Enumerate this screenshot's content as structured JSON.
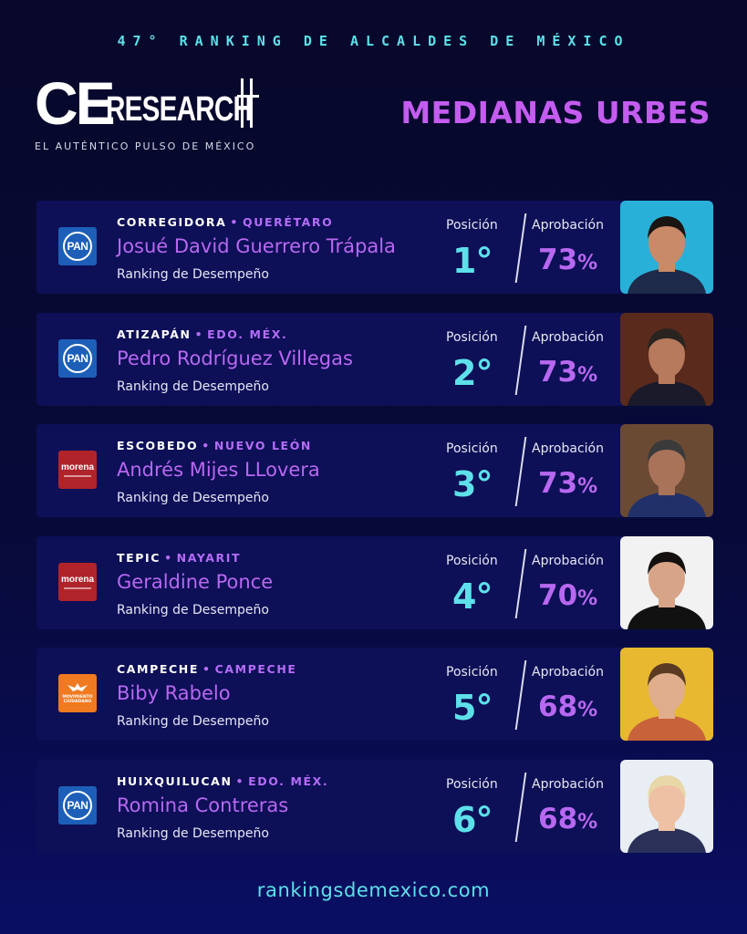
{
  "header": {
    "top_title": "47° RANKING DE ALCALDES DE MÉXICO",
    "logo_ce": "CE",
    "logo_research": "RESEARCH",
    "logo_tagline": "EL AUTÉNTICO PULSO DE MÉXICO",
    "section_title": "MEDIANAS URBES"
  },
  "labels": {
    "position": "Posición",
    "approval": "Aprobación",
    "subtitle": "Ranking de Desempeño"
  },
  "colors": {
    "accent_cyan": "#5ee0ea",
    "accent_purple": "#b868f0",
    "card_bg": "#0d0f57"
  },
  "mayors": [
    {
      "city": "CORREGIDORA",
      "state": "QUERÉTARO",
      "name": "Josué David Guerrero Trápala",
      "subtitle": "Ranking de Desempeño",
      "position": "1°",
      "approval": "73",
      "party_icon": "pan-logo"
    },
    {
      "city": "ATIZAPÁN",
      "state": "EDO. MÉX.",
      "name": "Pedro Rodríguez Villegas",
      "subtitle": "Ranking de Desempeño",
      "position": "2°",
      "approval": "73",
      "party_icon": "pan-logo"
    },
    {
      "city": "ESCOBEDO",
      "state": "NUEVO LEÓN",
      "name": "Andrés Mijes LLovera",
      "subtitle": "Ranking de Desempeño",
      "position": "3°",
      "approval": "73",
      "party_icon": "morena-logo"
    },
    {
      "city": "TEPIC",
      "state": "NAYARIT",
      "name": "Geraldine Ponce",
      "subtitle": "Ranking de Desempeño",
      "position": "4°",
      "approval": "70",
      "party_icon": "morena-logo"
    },
    {
      "city": "CAMPECHE",
      "state": "CAMPECHE",
      "name": "Biby Rabelo",
      "subtitle": "Ranking de Desempeño",
      "position": "5°",
      "approval": "68",
      "party_icon": "movimiento-ciudadano-logo"
    },
    {
      "city": "HUIXQUILUCAN",
      "state": "EDO. MÉX.",
      "name": "Romina Contreras",
      "subtitle": "Ranking de Desempeño",
      "position": "6°",
      "approval": "68",
      "party_icon": "pan-logo"
    }
  ],
  "party_logos": {
    "pan_text": "PAN",
    "morena_text": "morena",
    "mc_text": "MOVIMIENTO CIUDADANO"
  },
  "percent_sign": "%",
  "footer": {
    "url": "rankingsdemexico.com"
  }
}
